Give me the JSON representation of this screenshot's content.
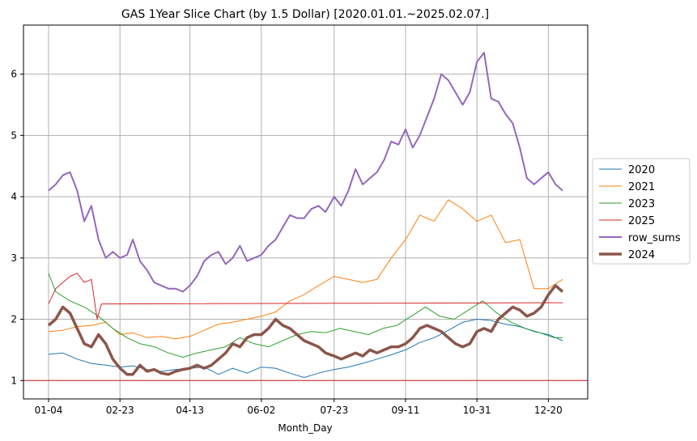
{
  "chart_data": {
    "type": "line",
    "title": "GAS 1Year Slice Chart (by 1.5 Dollar) [2020.01.01.~2025.02.07.]",
    "xlabel": "Month_Day",
    "ylabel": "",
    "x_ticks": [
      "01-04",
      "02-23",
      "04-13",
      "06-02",
      "07-23",
      "09-11",
      "10-31",
      "12-20"
    ],
    "y_ticks": [
      1,
      2,
      3,
      4,
      5,
      6
    ],
    "ylim": [
      0.7,
      6.8
    ],
    "grid": true,
    "legend_position": "center-right-outside",
    "reference_line": {
      "y": 1.0,
      "color": "#d62728"
    },
    "series": [
      {
        "name": "2020",
        "color": "#1f77b4",
        "width": 1,
        "points": [
          [
            "01-04",
            1.43
          ],
          [
            "01-14",
            1.45
          ],
          [
            "01-24",
            1.35
          ],
          [
            "02-03",
            1.28
          ],
          [
            "02-13",
            1.25
          ],
          [
            "02-23",
            1.22
          ],
          [
            "03-04",
            1.24
          ],
          [
            "03-14",
            1.18
          ],
          [
            "03-24",
            1.15
          ],
          [
            "04-03",
            1.18
          ],
          [
            "04-13",
            1.2
          ],
          [
            "04-23",
            1.22
          ],
          [
            "05-03",
            1.1
          ],
          [
            "05-13",
            1.2
          ],
          [
            "05-23",
            1.12
          ],
          [
            "06-02",
            1.22
          ],
          [
            "06-12",
            1.2
          ],
          [
            "06-22",
            1.12
          ],
          [
            "07-02",
            1.05
          ],
          [
            "07-12",
            1.12
          ],
          [
            "07-23",
            1.18
          ],
          [
            "08-02",
            1.22
          ],
          [
            "08-12",
            1.28
          ],
          [
            "08-22",
            1.35
          ],
          [
            "09-01",
            1.42
          ],
          [
            "09-11",
            1.5
          ],
          [
            "09-21",
            1.62
          ],
          [
            "10-01",
            1.7
          ],
          [
            "10-11",
            1.82
          ],
          [
            "10-21",
            1.95
          ],
          [
            "10-31",
            2.0
          ],
          [
            "11-10",
            1.98
          ],
          [
            "11-20",
            1.92
          ],
          [
            "11-30",
            1.88
          ],
          [
            "12-10",
            1.8
          ],
          [
            "12-20",
            1.75
          ],
          [
            "12-30",
            1.65
          ]
        ]
      },
      {
        "name": "2021",
        "color": "#ff7f0e",
        "width": 1,
        "points": [
          [
            "01-04",
            1.8
          ],
          [
            "01-14",
            1.82
          ],
          [
            "01-24",
            1.88
          ],
          [
            "02-03",
            1.9
          ],
          [
            "02-13",
            1.95
          ],
          [
            "02-23",
            1.75
          ],
          [
            "03-04",
            1.78
          ],
          [
            "03-14",
            1.7
          ],
          [
            "03-24",
            1.72
          ],
          [
            "04-03",
            1.68
          ],
          [
            "04-13",
            1.72
          ],
          [
            "04-23",
            1.82
          ],
          [
            "05-03",
            1.92
          ],
          [
            "05-13",
            1.95
          ],
          [
            "05-23",
            2.0
          ],
          [
            "06-02",
            2.05
          ],
          [
            "06-12",
            2.12
          ],
          [
            "06-22",
            2.3
          ],
          [
            "07-02",
            2.4
          ],
          [
            "07-12",
            2.55
          ],
          [
            "07-23",
            2.7
          ],
          [
            "08-02",
            2.65
          ],
          [
            "08-12",
            2.6
          ],
          [
            "08-22",
            2.65
          ],
          [
            "09-01",
            3.0
          ],
          [
            "09-11",
            3.3
          ],
          [
            "09-21",
            3.7
          ],
          [
            "10-01",
            3.6
          ],
          [
            "10-11",
            3.95
          ],
          [
            "10-21",
            3.8
          ],
          [
            "10-31",
            3.6
          ],
          [
            "11-10",
            3.7
          ],
          [
            "11-20",
            3.25
          ],
          [
            "11-30",
            3.3
          ],
          [
            "12-10",
            2.5
          ],
          [
            "12-20",
            2.5
          ],
          [
            "12-30",
            2.65
          ]
        ]
      },
      {
        "name": "2023",
        "color": "#2ca02c",
        "width": 1,
        "points": [
          [
            "01-04",
            2.75
          ],
          [
            "01-09",
            2.45
          ],
          [
            "01-19",
            2.3
          ],
          [
            "01-29",
            2.2
          ],
          [
            "02-08",
            2.05
          ],
          [
            "02-18",
            1.85
          ],
          [
            "02-28",
            1.7
          ],
          [
            "03-09",
            1.6
          ],
          [
            "03-19",
            1.55
          ],
          [
            "03-29",
            1.45
          ],
          [
            "04-08",
            1.38
          ],
          [
            "04-18",
            1.45
          ],
          [
            "04-28",
            1.5
          ],
          [
            "05-08",
            1.55
          ],
          [
            "05-18",
            1.7
          ],
          [
            "05-28",
            1.6
          ],
          [
            "06-07",
            1.55
          ],
          [
            "06-17",
            1.65
          ],
          [
            "06-27",
            1.75
          ],
          [
            "07-07",
            1.8
          ],
          [
            "07-17",
            1.78
          ],
          [
            "07-27",
            1.85
          ],
          [
            "08-06",
            1.8
          ],
          [
            "08-16",
            1.75
          ],
          [
            "08-26",
            1.85
          ],
          [
            "09-05",
            1.9
          ],
          [
            "09-15",
            2.05
          ],
          [
            "09-25",
            2.2
          ],
          [
            "10-05",
            2.05
          ],
          [
            "10-15",
            2.0
          ],
          [
            "10-25",
            2.15
          ],
          [
            "11-04",
            2.3
          ],
          [
            "11-14",
            2.1
          ],
          [
            "11-24",
            1.95
          ],
          [
            "12-04",
            1.85
          ],
          [
            "12-14",
            1.78
          ],
          [
            "12-24",
            1.7
          ],
          [
            "12-30",
            1.7
          ]
        ]
      },
      {
        "name": "2025",
        "color": "#d62728",
        "width": 1,
        "points": [
          [
            "01-04",
            2.25
          ],
          [
            "01-09",
            2.5
          ],
          [
            "01-14",
            2.6
          ],
          [
            "01-19",
            2.7
          ],
          [
            "01-24",
            2.75
          ],
          [
            "01-29",
            2.6
          ],
          [
            "02-03",
            2.65
          ],
          [
            "02-07",
            2.0
          ],
          [
            "02-10",
            2.25
          ],
          [
            "12-30",
            2.27
          ]
        ]
      },
      {
        "name": "row_sums",
        "color": "#9467bd",
        "width": 2,
        "points": [
          [
            "01-04",
            4.1
          ],
          [
            "01-09",
            4.2
          ],
          [
            "01-14",
            4.35
          ],
          [
            "01-19",
            4.4
          ],
          [
            "01-24",
            4.1
          ],
          [
            "01-29",
            3.6
          ],
          [
            "02-03",
            3.85
          ],
          [
            "02-08",
            3.3
          ],
          [
            "02-13",
            3.0
          ],
          [
            "02-18",
            3.1
          ],
          [
            "02-23",
            3.0
          ],
          [
            "02-28",
            3.05
          ],
          [
            "03-04",
            3.3
          ],
          [
            "03-09",
            2.95
          ],
          [
            "03-14",
            2.8
          ],
          [
            "03-19",
            2.6
          ],
          [
            "03-24",
            2.55
          ],
          [
            "03-29",
            2.5
          ],
          [
            "04-03",
            2.5
          ],
          [
            "04-08",
            2.45
          ],
          [
            "04-13",
            2.55
          ],
          [
            "04-18",
            2.7
          ],
          [
            "04-23",
            2.95
          ],
          [
            "04-28",
            3.05
          ],
          [
            "05-03",
            3.1
          ],
          [
            "05-08",
            2.9
          ],
          [
            "05-13",
            3.0
          ],
          [
            "05-18",
            3.2
          ],
          [
            "05-23",
            2.95
          ],
          [
            "06-02",
            3.05
          ],
          [
            "06-07",
            3.2
          ],
          [
            "06-12",
            3.3
          ],
          [
            "06-17",
            3.5
          ],
          [
            "06-22",
            3.7
          ],
          [
            "06-27",
            3.65
          ],
          [
            "07-02",
            3.65
          ],
          [
            "07-07",
            3.8
          ],
          [
            "07-12",
            3.85
          ],
          [
            "07-17",
            3.75
          ],
          [
            "07-23",
            4.0
          ],
          [
            "07-28",
            3.85
          ],
          [
            "08-02",
            4.1
          ],
          [
            "08-07",
            4.45
          ],
          [
            "08-12",
            4.2
          ],
          [
            "08-17",
            4.3
          ],
          [
            "08-22",
            4.4
          ],
          [
            "08-27",
            4.6
          ],
          [
            "09-01",
            4.9
          ],
          [
            "09-06",
            4.85
          ],
          [
            "09-11",
            5.1
          ],
          [
            "09-16",
            4.8
          ],
          [
            "09-21",
            5.0
          ],
          [
            "09-26",
            5.3
          ],
          [
            "10-01",
            5.6
          ],
          [
            "10-06",
            6.0
          ],
          [
            "10-11",
            5.9
          ],
          [
            "10-16",
            5.7
          ],
          [
            "10-21",
            5.5
          ],
          [
            "10-26",
            5.7
          ],
          [
            "10-31",
            6.2
          ],
          [
            "11-05",
            6.35
          ],
          [
            "11-10",
            5.6
          ],
          [
            "11-15",
            5.55
          ],
          [
            "11-20",
            5.35
          ],
          [
            "11-25",
            5.2
          ],
          [
            "11-30",
            4.8
          ],
          [
            "12-05",
            4.3
          ],
          [
            "12-10",
            4.2
          ],
          [
            "12-15",
            4.3
          ],
          [
            "12-20",
            4.4
          ],
          [
            "12-25",
            4.2
          ],
          [
            "12-30",
            4.1
          ]
        ]
      },
      {
        "name": "2024",
        "color": "#8c564b",
        "width": 3.5,
        "points": [
          [
            "01-04",
            1.9
          ],
          [
            "01-09",
            2.0
          ],
          [
            "01-14",
            2.2
          ],
          [
            "01-19",
            2.1
          ],
          [
            "01-24",
            1.85
          ],
          [
            "01-29",
            1.6
          ],
          [
            "02-03",
            1.55
          ],
          [
            "02-08",
            1.75
          ],
          [
            "02-13",
            1.6
          ],
          [
            "02-18",
            1.35
          ],
          [
            "02-23",
            1.2
          ],
          [
            "02-28",
            1.1
          ],
          [
            "03-04",
            1.1
          ],
          [
            "03-09",
            1.25
          ],
          [
            "03-14",
            1.15
          ],
          [
            "03-19",
            1.18
          ],
          [
            "03-24",
            1.12
          ],
          [
            "03-29",
            1.1
          ],
          [
            "04-03",
            1.15
          ],
          [
            "04-08",
            1.18
          ],
          [
            "04-13",
            1.2
          ],
          [
            "04-18",
            1.25
          ],
          [
            "04-23",
            1.2
          ],
          [
            "04-28",
            1.25
          ],
          [
            "05-03",
            1.35
          ],
          [
            "05-08",
            1.45
          ],
          [
            "05-13",
            1.6
          ],
          [
            "05-18",
            1.55
          ],
          [
            "05-23",
            1.7
          ],
          [
            "05-28",
            1.75
          ],
          [
            "06-02",
            1.75
          ],
          [
            "06-07",
            1.85
          ],
          [
            "06-12",
            2.0
          ],
          [
            "06-17",
            1.9
          ],
          [
            "06-22",
            1.85
          ],
          [
            "06-27",
            1.75
          ],
          [
            "07-02",
            1.65
          ],
          [
            "07-07",
            1.6
          ],
          [
            "07-12",
            1.55
          ],
          [
            "07-17",
            1.45
          ],
          [
            "07-23",
            1.4
          ],
          [
            "07-28",
            1.35
          ],
          [
            "08-02",
            1.4
          ],
          [
            "08-07",
            1.45
          ],
          [
            "08-12",
            1.4
          ],
          [
            "08-17",
            1.5
          ],
          [
            "08-22",
            1.45
          ],
          [
            "08-27",
            1.5
          ],
          [
            "09-01",
            1.55
          ],
          [
            "09-06",
            1.55
          ],
          [
            "09-11",
            1.6
          ],
          [
            "09-16",
            1.7
          ],
          [
            "09-21",
            1.85
          ],
          [
            "09-26",
            1.9
          ],
          [
            "10-01",
            1.85
          ],
          [
            "10-06",
            1.8
          ],
          [
            "10-11",
            1.7
          ],
          [
            "10-16",
            1.6
          ],
          [
            "10-21",
            1.55
          ],
          [
            "10-26",
            1.6
          ],
          [
            "10-31",
            1.8
          ],
          [
            "11-05",
            1.85
          ],
          [
            "11-10",
            1.8
          ],
          [
            "11-15",
            2.0
          ],
          [
            "11-20",
            2.1
          ],
          [
            "11-25",
            2.2
          ],
          [
            "11-30",
            2.15
          ],
          [
            "12-05",
            2.05
          ],
          [
            "12-10",
            2.1
          ],
          [
            "12-15",
            2.2
          ],
          [
            "12-20",
            2.4
          ],
          [
            "12-25",
            2.55
          ],
          [
            "12-30",
            2.45
          ]
        ]
      }
    ]
  }
}
